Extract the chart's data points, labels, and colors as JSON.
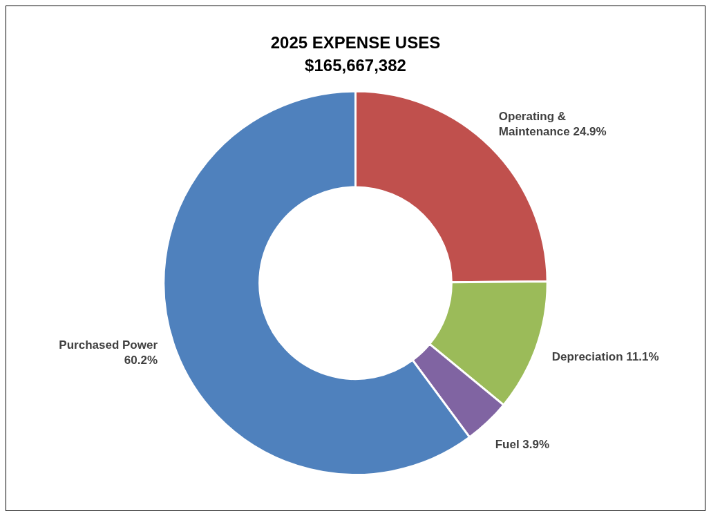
{
  "chart_data": {
    "type": "donut",
    "title": "2025 EXPENSE USES",
    "subtitle": "$165,667,382",
    "categories": [
      "Operating & Maintenance",
      "Depreciation",
      "Fuel",
      "Purchased Power"
    ],
    "values": [
      24.9,
      11.1,
      3.9,
      60.2
    ],
    "colors": [
      "#c0504d",
      "#9bbb59",
      "#8064a2",
      "#4f81bd"
    ],
    "value_labels": [
      "24.9%",
      "11.1%",
      "3.9%",
      "60.2%"
    ],
    "legend": false
  }
}
